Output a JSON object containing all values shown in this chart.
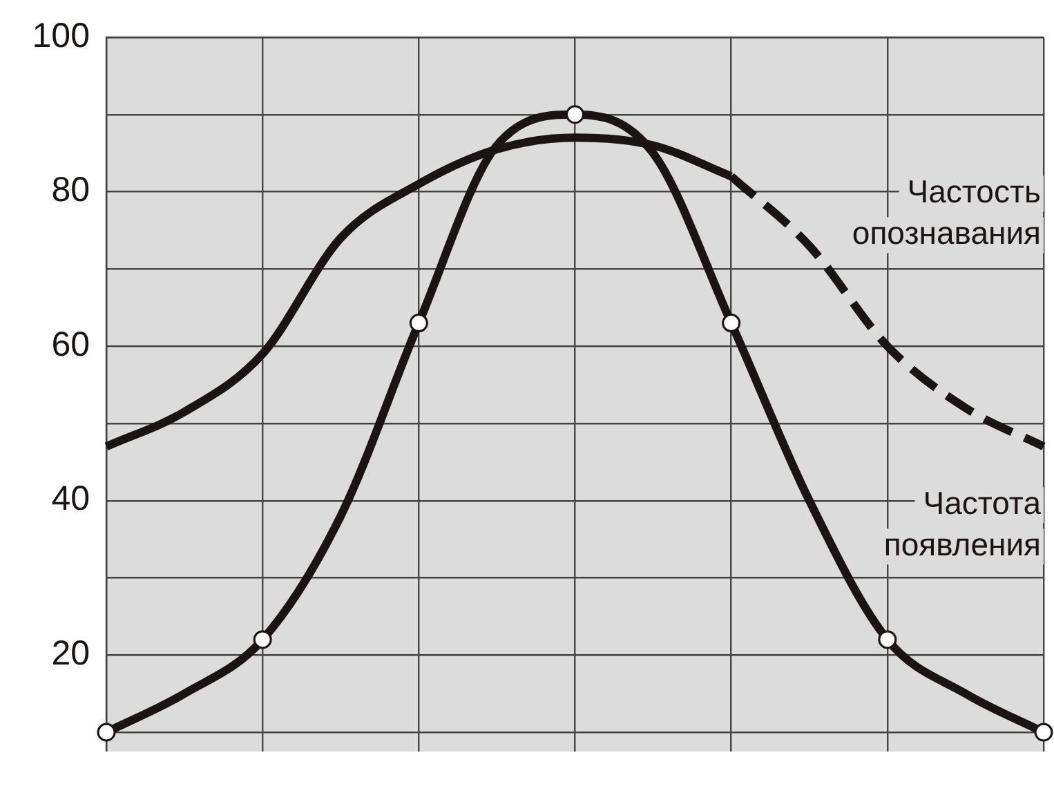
{
  "chart_data": {
    "type": "line",
    "legend": false,
    "grid": true,
    "tick_labels": "y",
    "categories": [
      null,
      null,
      null,
      null,
      null,
      null,
      null,
      null,
      null,
      null,
      null,
      null,
      null
    ],
    "ylim": [
      7.5,
      100
    ],
    "yticks": [
      {
        "value": 10,
        "label": null
      },
      20,
      {
        "value": 30,
        "label": null
      },
      40,
      {
        "value": 50,
        "label": null
      },
      60,
      {
        "value": 70,
        "label": null
      },
      80,
      {
        "value": 90,
        "label": null
      },
      100
    ],
    "series": [
      {
        "color": "#1a1414",
        "line_style": "solid",
        "marker": "none",
        "values": [
          47,
          51.5,
          59,
          74,
          81,
          85.5,
          87,
          86,
          82,
          null,
          null,
          null,
          null
        ]
      },
      {
        "name": "Частость опознавания",
        "color": "#1a1414",
        "line_style": "dashed",
        "marker": "none",
        "values": [
          null,
          null,
          null,
          null,
          null,
          null,
          null,
          null,
          82,
          73,
          60,
          52,
          47
        ]
      },
      {
        "name": "Частота появления",
        "color": "#1a1414",
        "line_style": "solid",
        "marker": "circle",
        "values": [
          10,
          15,
          22,
          38,
          63,
          86,
          90,
          85,
          63,
          40,
          22,
          15,
          10
        ]
      }
    ]
  }
}
